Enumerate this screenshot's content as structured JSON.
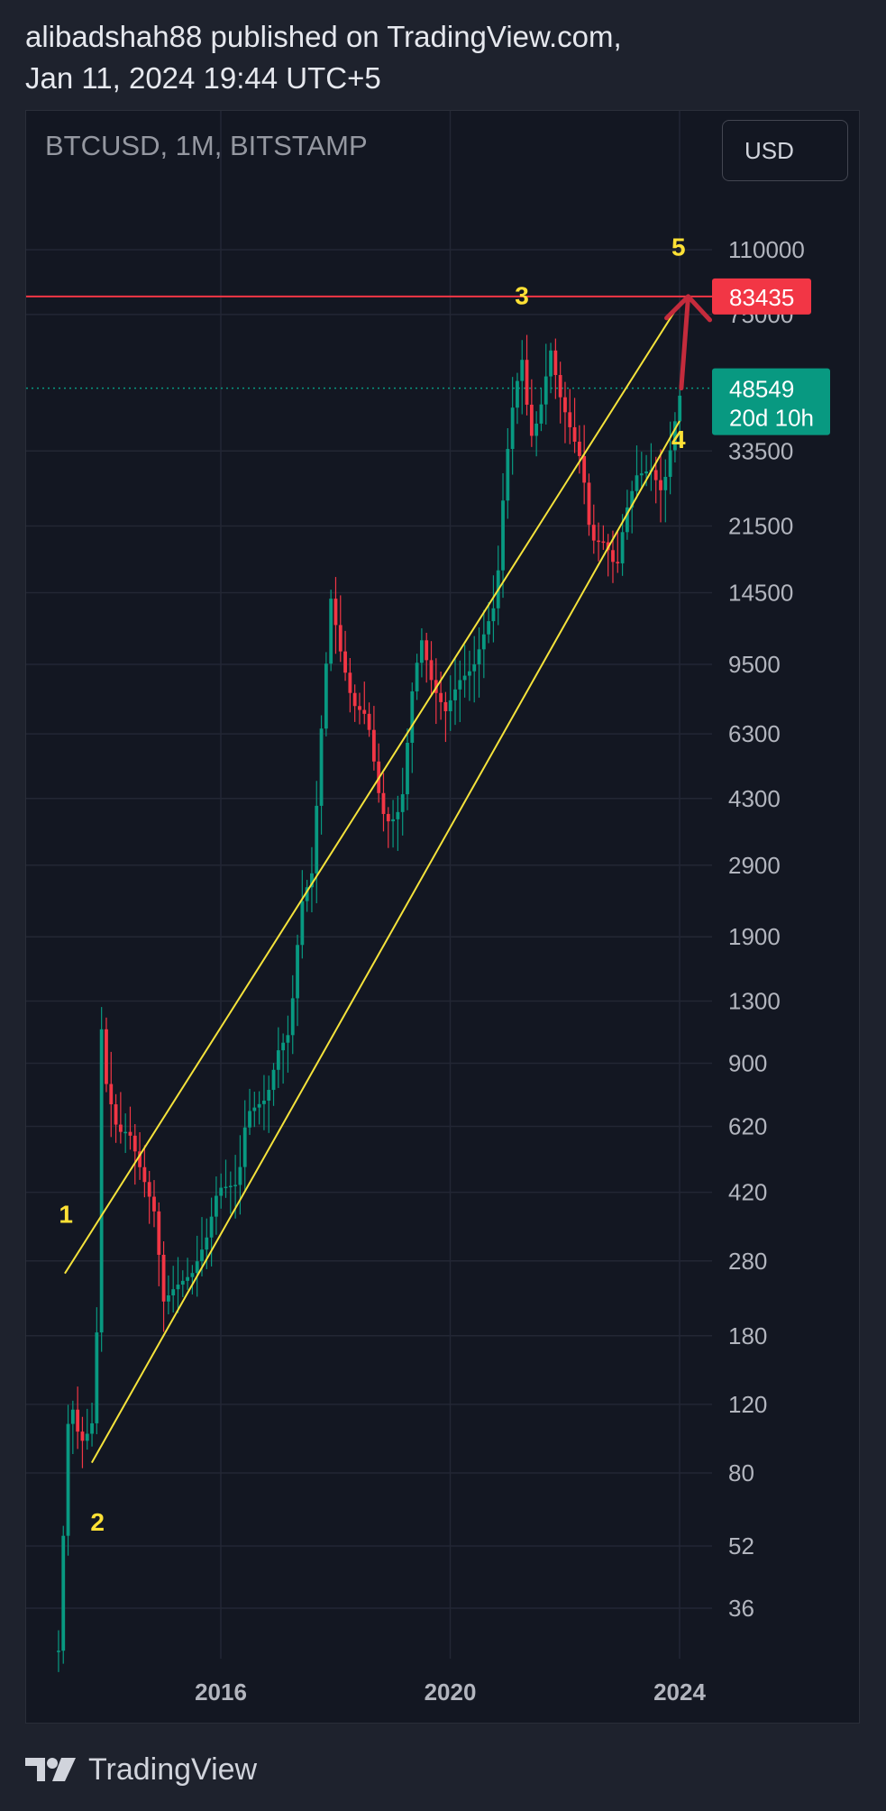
{
  "header": {
    "line1": "alibadshah88 published on TradingView.com,",
    "line2": "Jan 11, 2024 19:44 UTC+5"
  },
  "chart_header": {
    "symbol": "BTCUSD, 1M, BITSTAMP",
    "currency": "USD"
  },
  "footer": {
    "brand": "TradingView"
  },
  "colors": {
    "up": "#089981",
    "down": "#f23645",
    "channel": "#f5e33b",
    "label": "#ffe135",
    "resistance": "#f23645",
    "arrow": "#c42b3c",
    "grid": "#232734",
    "background": "#131722"
  },
  "chart_data": {
    "type": "candlestick",
    "title": "BTCUSD, 1M, BITSTAMP",
    "scale": "log",
    "ylim": [
      25,
      170000
    ],
    "xlim": [
      2013.1,
      2024.6
    ],
    "grid": true,
    "y_ticks": [
      110000,
      75000,
      33500,
      21500,
      14500,
      9500,
      6300,
      4300,
      2900,
      1900,
      1300,
      900,
      620,
      420,
      280,
      180,
      120,
      80,
      52,
      36
    ],
    "x_ticks": [
      {
        "label": "2016",
        "value": 2016.0
      },
      {
        "label": "2020",
        "value": 2020.0
      },
      {
        "label": "2024",
        "value": 2024.0
      }
    ],
    "price_series_anchors": [
      [
        2013.2,
        28
      ],
      [
        2013.3,
        100
      ],
      [
        2013.4,
        120
      ],
      [
        2013.55,
        95
      ],
      [
        2013.75,
        105
      ],
      [
        2013.85,
        200
      ],
      [
        2013.92,
        1100
      ],
      [
        2014.0,
        800
      ],
      [
        2014.2,
        600
      ],
      [
        2014.4,
        600
      ],
      [
        2014.6,
        480
      ],
      [
        2014.85,
        370
      ],
      [
        2015.0,
        220
      ],
      [
        2015.2,
        240
      ],
      [
        2015.5,
        260
      ],
      [
        2015.75,
        320
      ],
      [
        2015.95,
        430
      ],
      [
        2016.3,
        440
      ],
      [
        2016.45,
        670
      ],
      [
        2016.8,
        730
      ],
      [
        2017.0,
        970
      ],
      [
        2017.2,
        1080
      ],
      [
        2017.4,
        2300
      ],
      [
        2017.6,
        2800
      ],
      [
        2017.75,
        6400
      ],
      [
        2017.92,
        14000
      ],
      [
        2018.1,
        10000
      ],
      [
        2018.3,
        7500
      ],
      [
        2018.55,
        7000
      ],
      [
        2018.8,
        4000
      ],
      [
        2018.95,
        3700
      ],
      [
        2019.15,
        4100
      ],
      [
        2019.35,
        8500
      ],
      [
        2019.5,
        11000
      ],
      [
        2019.7,
        8300
      ],
      [
        2019.92,
        7200
      ],
      [
        2020.15,
        8600
      ],
      [
        2020.4,
        9300
      ],
      [
        2020.6,
        11500
      ],
      [
        2020.8,
        13800
      ],
      [
        2020.95,
        29000
      ],
      [
        2021.1,
        45000
      ],
      [
        2021.25,
        58000
      ],
      [
        2021.4,
        36000
      ],
      [
        2021.55,
        41000
      ],
      [
        2021.75,
        61000
      ],
      [
        2021.9,
        47000
      ],
      [
        2022.1,
        38000
      ],
      [
        2022.3,
        31000
      ],
      [
        2022.45,
        19800
      ],
      [
        2022.7,
        19500
      ],
      [
        2022.9,
        16500
      ],
      [
        2023.05,
        23000
      ],
      [
        2023.25,
        29000
      ],
      [
        2023.5,
        30000
      ],
      [
        2023.7,
        26000
      ],
      [
        2023.85,
        34500
      ],
      [
        2023.95,
        42500
      ],
      [
        2024.03,
        48549
      ]
    ],
    "channel_upper": [
      [
        2013.28,
        260
      ],
      [
        2024.0,
        80000
      ]
    ],
    "channel_lower": [
      [
        2013.75,
        85
      ],
      [
        2024.0,
        40000
      ]
    ],
    "wave_labels": [
      {
        "label": "1",
        "x": 2013.3,
        "y": 370
      },
      {
        "label": "2",
        "x": 2013.85,
        "y": 60
      },
      {
        "label": "3",
        "x": 2021.25,
        "y": 84000
      },
      {
        "label": "4",
        "x": 2023.98,
        "y": 36000
      },
      {
        "label": "5",
        "x": 2023.98,
        "y": 112000
      }
    ],
    "resistance_line": {
      "value": 83435,
      "label": "83435"
    },
    "current_price": {
      "value": 48549,
      "label": "48549",
      "countdown": "20d 10h"
    },
    "projection_arrow": {
      "from": [
        2024.03,
        48549
      ],
      "to": [
        2024.15,
        83435
      ]
    }
  }
}
